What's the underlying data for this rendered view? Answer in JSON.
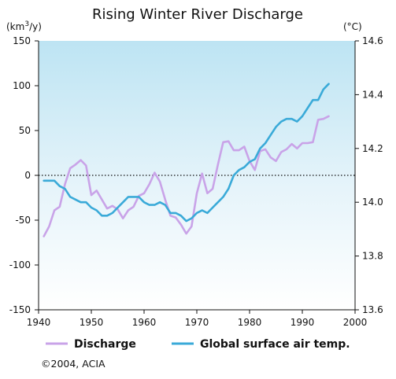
{
  "chart_data": {
    "type": "line",
    "title": "Rising Winter River Discharge",
    "left_unit_prefix": "(km",
    "left_unit_sup": "3",
    "left_unit_suffix": "/y)",
    "right_unit": "(°C)",
    "xlim": [
      1940,
      2000
    ],
    "ylim_left": [
      -150,
      150
    ],
    "ylim_right": [
      13.6,
      14.6
    ],
    "x_ticks": [
      1940,
      1950,
      1960,
      1970,
      1980,
      1990,
      2000
    ],
    "y_ticks_left": [
      -150,
      -100,
      -50,
      0,
      50,
      100,
      150
    ],
    "y_ticks_right": [
      "13.6",
      "13.8",
      "14.0",
      "14.2",
      "14.4",
      "14.6"
    ],
    "zero_line_left": 0,
    "series": [
      {
        "name": "Discharge",
        "axis": "left",
        "color": "#c9a3e8",
        "x": [
          1941,
          1942,
          1943,
          1944,
          1945,
          1946,
          1947,
          1948,
          1949,
          1950,
          1951,
          1952,
          1953,
          1954,
          1955,
          1956,
          1957,
          1958,
          1959,
          1960,
          1961,
          1962,
          1963,
          1964,
          1965,
          1966,
          1967,
          1968,
          1969,
          1970,
          1971,
          1972,
          1973,
          1974,
          1975,
          1976,
          1977,
          1978,
          1979,
          1980,
          1981,
          1982,
          1983,
          1984,
          1985,
          1986,
          1987,
          1988,
          1989,
          1990,
          1991,
          1992,
          1993,
          1994,
          1995
        ],
        "values": [
          -68,
          -57,
          -39,
          -35,
          -10,
          8,
          12,
          17,
          11,
          -22,
          -17,
          -27,
          -37,
          -34,
          -38,
          -48,
          -39,
          -35,
          -23,
          -20,
          -10,
          3,
          -7,
          -27,
          -45,
          -47,
          -55,
          -65,
          -57,
          -20,
          2,
          -20,
          -15,
          12,
          37,
          38,
          28,
          28,
          32,
          16,
          6,
          27,
          29,
          20,
          16,
          26,
          29,
          35,
          30,
          36,
          36,
          37,
          62,
          63,
          66
        ]
      },
      {
        "name": "Global surface air temp.",
        "axis": "right",
        "color": "#3aaad8",
        "x": [
          1941,
          1942,
          1943,
          1944,
          1945,
          1946,
          1947,
          1948,
          1949,
          1950,
          1951,
          1952,
          1953,
          1954,
          1955,
          1956,
          1957,
          1958,
          1959,
          1960,
          1961,
          1962,
          1963,
          1964,
          1965,
          1966,
          1967,
          1968,
          1969,
          1970,
          1971,
          1972,
          1973,
          1974,
          1975,
          1976,
          1977,
          1978,
          1979,
          1980,
          1981,
          1982,
          1983,
          1984,
          1985,
          1986,
          1987,
          1988,
          1989,
          1990,
          1991,
          1992,
          1993,
          1994,
          1995
        ],
        "values": [
          14.08,
          14.08,
          14.08,
          14.06,
          14.05,
          14.02,
          14.01,
          14.0,
          14.0,
          13.98,
          13.97,
          13.95,
          13.95,
          13.96,
          13.98,
          14.0,
          14.02,
          14.02,
          14.02,
          14.0,
          13.99,
          13.99,
          14.0,
          13.99,
          13.96,
          13.96,
          13.95,
          13.93,
          13.94,
          13.96,
          13.97,
          13.96,
          13.98,
          14.0,
          14.02,
          14.05,
          14.1,
          14.12,
          14.13,
          14.15,
          14.16,
          14.2,
          14.22,
          14.25,
          14.28,
          14.3,
          14.31,
          14.31,
          14.3,
          14.32,
          14.35,
          14.38,
          14.38,
          14.42,
          14.44
        ]
      }
    ],
    "legend": {
      "placement": "bottom"
    },
    "credit": "©2004, ACIA"
  }
}
